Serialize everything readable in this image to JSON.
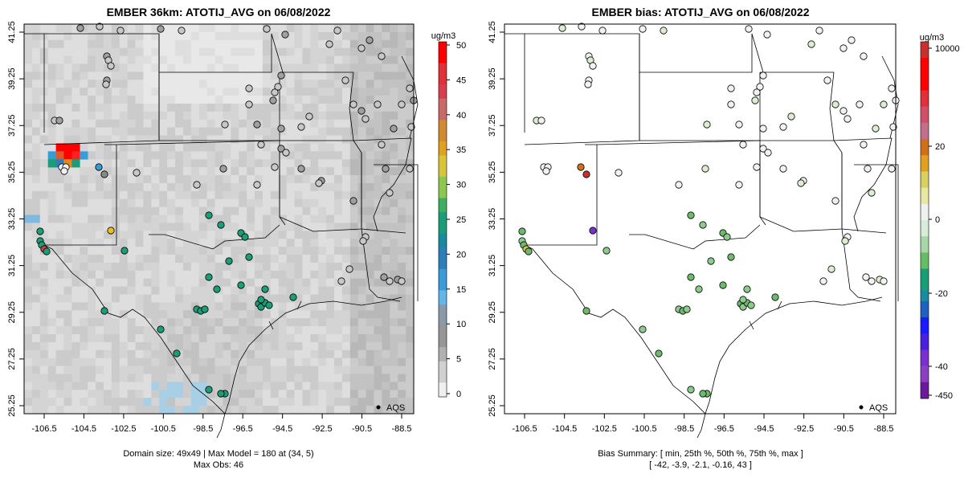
{
  "left_panel": {
    "title": "EMBER 36km: ATOTIJ_AVG on 06/08/2022",
    "legend_unit": "ug/m3",
    "legend_ticks": [
      "0",
      "5",
      "10",
      "15",
      "20",
      "25",
      "30",
      "35",
      "40",
      "45",
      "50"
    ],
    "x_ticks": [
      "-106.5",
      "-104.5",
      "-102.5",
      "-100.5",
      "-98.5",
      "-96.5",
      "-94.5",
      "-92.5",
      "-90.5",
      "-88.5"
    ],
    "y_ticks": [
      "41.25",
      "39.25",
      "37.25",
      "35.25",
      "33.25",
      "31.25",
      "29.25",
      "27.25",
      "25.25"
    ],
    "marker_legend": "AQS",
    "caption_line1": "Domain size: 49x49 | Max Model = 180 at (34, 5)",
    "caption_line2": "Max Obs: 46"
  },
  "right_panel": {
    "title": "EMBER bias: ATOTIJ_AVG on 06/08/2022",
    "legend_unit": "ug/m3",
    "legend_ticks": [
      "10000",
      "20",
      "0",
      "-20",
      "-40",
      "-450"
    ],
    "x_ticks": [
      "-106.5",
      "-104.5",
      "-102.5",
      "-100.5",
      "-98.5",
      "-96.5",
      "-94.5",
      "-92.5",
      "-90.5",
      "-88.5"
    ],
    "y_ticks": [
      "41.25",
      "39.25",
      "37.25",
      "35.25",
      "33.25",
      "31.25",
      "29.25",
      "27.25",
      "25.25"
    ],
    "marker_legend": "AQS",
    "caption_line1": "Bias Summary: [ min, 25th %, 50th %, 75th %, max ]",
    "caption_line2": "[ -42,   -3.9,   -2.1,   -0.16,   43 ]"
  },
  "colors": {
    "model_scale": [
      "#f0f0f0",
      "#d9d9d9",
      "#bdbdbd",
      "#969696",
      "#64b5e8",
      "#2c7fb8",
      "#1a9e77",
      "#66bd63",
      "#d9c43a",
      "#e08a1e",
      "#d6404e",
      "#ff0000"
    ],
    "bias_scale_top": [
      "#ff0000",
      "#e0572a",
      "#e0a020",
      "#d8d060",
      "#f0f0f0"
    ],
    "bias_scale_bottom": [
      "#f0f0f0",
      "#a8d8a8",
      "#1a9e77",
      "#2060c0",
      "#1a1aff",
      "#7a30d0",
      "#6a1a9a"
    ]
  }
}
